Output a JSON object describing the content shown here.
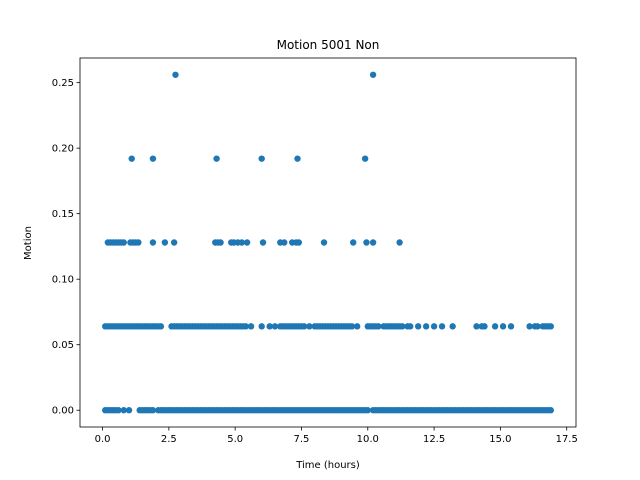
{
  "chart_data": {
    "type": "scatter",
    "title": "Motion 5001 Non",
    "xlabel": "Time (hours)",
    "ylabel": "Motion",
    "xlim": [
      -0.85,
      17.85
    ],
    "ylim": [
      -0.0128,
      0.2688
    ],
    "xticks": [
      0.0,
      2.5,
      5.0,
      7.5,
      10.0,
      12.5,
      15.0,
      17.5
    ],
    "xtick_labels": [
      "0.0",
      "2.5",
      "5.0",
      "7.5",
      "10.0",
      "12.5",
      "15.0",
      "17.5"
    ],
    "yticks": [
      0.0,
      0.05,
      0.1,
      0.15,
      0.2,
      0.25
    ],
    "ytick_labels": [
      "0.00",
      "0.05",
      "0.10",
      "0.15",
      "0.20",
      "0.25"
    ],
    "grid": false,
    "marker_color": "#1f77b4",
    "series": [
      {
        "level_points": [
          {
            "y": 0.256,
            "x": [
              2.75,
              10.2
            ]
          },
          {
            "y": 0.192,
            "x": [
              1.1,
              1.9,
              4.3,
              6.0,
              7.35,
              9.9
            ]
          },
          {
            "y": 0.128,
            "x": [
              0.2,
              0.3,
              0.4,
              0.5,
              0.6,
              0.7,
              0.8,
              1.05,
              1.15,
              1.25,
              1.35,
              1.9,
              2.35,
              2.7,
              4.25,
              4.35,
              4.45,
              4.85,
              4.95,
              5.1,
              5.25,
              5.45,
              6.05,
              6.7,
              6.85,
              7.15,
              7.3,
              7.4,
              8.35,
              9.45,
              9.95,
              10.2,
              11.2
            ]
          },
          {
            "y": 0.064,
            "x": [
              0.1,
              0.2,
              0.3,
              0.4,
              0.5,
              0.6,
              0.7,
              0.8,
              0.9,
              1.0,
              1.1,
              1.2,
              1.3,
              1.4,
              1.5,
              1.6,
              1.7,
              1.8,
              1.9,
              2.0,
              2.1,
              2.2,
              2.6,
              2.7,
              2.8,
              2.9,
              3.0,
              3.1,
              3.2,
              3.3,
              3.4,
              3.5,
              3.6,
              3.7,
              3.8,
              3.9,
              4.0,
              4.1,
              4.2,
              4.3,
              4.4,
              4.5,
              4.6,
              4.7,
              4.8,
              4.9,
              5.0,
              5.1,
              5.2,
              5.3,
              5.4,
              5.6,
              6.0,
              6.3,
              6.5,
              6.7,
              6.8,
              6.9,
              7.0,
              7.1,
              7.2,
              7.3,
              7.4,
              7.5,
              7.6,
              7.8,
              8.0,
              8.1,
              8.2,
              8.3,
              8.4,
              8.5,
              8.6,
              8.7,
              8.8,
              8.9,
              9.0,
              9.1,
              9.2,
              9.3,
              9.4,
              9.6,
              10.0,
              10.1,
              10.2,
              10.3,
              10.4,
              10.6,
              10.7,
              10.8,
              10.9,
              11.0,
              11.1,
              11.2,
              11.3,
              11.5,
              11.6,
              11.9,
              12.2,
              12.5,
              12.8,
              13.2,
              14.1,
              14.3,
              14.4,
              14.8,
              15.1,
              15.4,
              16.1,
              16.3,
              16.4,
              16.6,
              16.7,
              16.8,
              16.9
            ]
          },
          {
            "y": 0.0,
            "x": [
              0.1,
              0.2,
              0.3,
              0.4,
              0.5,
              0.6,
              0.8,
              1.0,
              1.4,
              1.5,
              1.6,
              1.7,
              1.8,
              1.9,
              2.1,
              2.2,
              2.3,
              2.4,
              2.5,
              2.6,
              2.7,
              2.8,
              2.9,
              3.0,
              3.1,
              3.2,
              3.3,
              3.4,
              3.5,
              3.6,
              3.7,
              3.8,
              3.9,
              4.0,
              4.1,
              4.2,
              4.3,
              4.4,
              4.5,
              4.6,
              4.7,
              4.8,
              4.9,
              5.0,
              5.1,
              5.2,
              5.3,
              5.4,
              5.5,
              5.6,
              5.7,
              5.8,
              5.9,
              6.0,
              6.1,
              6.2,
              6.3,
              6.4,
              6.5,
              6.6,
              6.7,
              6.8,
              6.9,
              7.0,
              7.1,
              7.2,
              7.3,
              7.4,
              7.5,
              7.6,
              7.7,
              7.8,
              7.9,
              8.0,
              8.1,
              8.2,
              8.3,
              8.4,
              8.5,
              8.6,
              8.7,
              8.8,
              8.9,
              9.0,
              9.1,
              9.2,
              9.3,
              9.4,
              9.5,
              9.6,
              9.7,
              9.8,
              9.9,
              10.0,
              10.2,
              10.3,
              10.4,
              10.5,
              10.6,
              10.7,
              10.8,
              10.9,
              11.0,
              11.1,
              11.2,
              11.3,
              11.4,
              11.5,
              11.6,
              11.7,
              11.8,
              11.9,
              12.0,
              12.1,
              12.2,
              12.3,
              12.4,
              12.5,
              12.6,
              12.7,
              12.8,
              12.9,
              13.0,
              13.1,
              13.2,
              13.3,
              13.4,
              13.5,
              13.6,
              13.7,
              13.8,
              13.9,
              14.0,
              14.1,
              14.2,
              14.3,
              14.4,
              14.5,
              14.6,
              14.7,
              14.8,
              14.9,
              15.0,
              15.1,
              15.2,
              15.3,
              15.4,
              15.5,
              15.6,
              15.7,
              15.8,
              15.9,
              16.0,
              16.1,
              16.2,
              16.3,
              16.4,
              16.5,
              16.6,
              16.7,
              16.8,
              16.9
            ]
          }
        ]
      }
    ]
  }
}
